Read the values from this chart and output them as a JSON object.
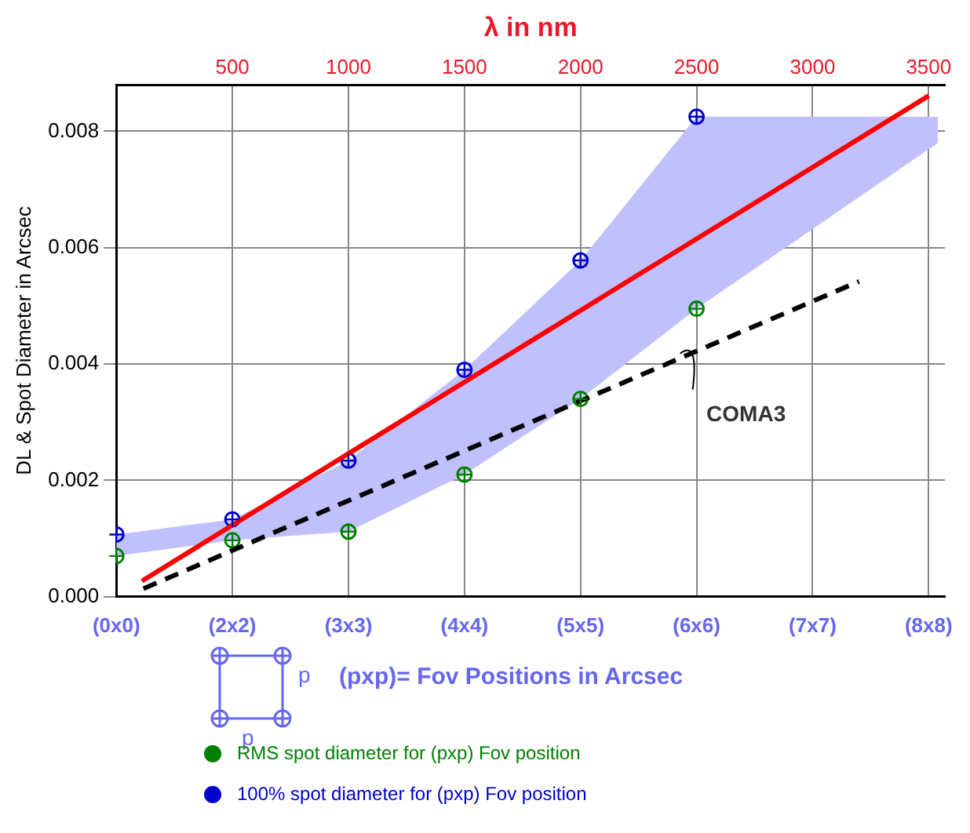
{
  "chart_data": {
    "type": "scatter",
    "ylabel": "DL & Spot Diameter in Arcsec",
    "x2label": "λ in nm",
    "categories": [
      "(0x0)",
      "(2x2)",
      "(3x3)",
      "(4x4)",
      "(5x5)",
      "(6x6)",
      "(7x7)",
      "(8x8)"
    ],
    "x2lim": [
      0,
      3570
    ],
    "x2ticks": [
      500,
      1000,
      1500,
      2000,
      2500,
      3000,
      3500
    ],
    "ylim": [
      0,
      0.0088
    ],
    "yticks": [
      {
        "value": 0,
        "label": "0.000"
      },
      {
        "value": 0.002,
        "label": "0.002"
      },
      {
        "value": 0.004,
        "label": "0.004"
      },
      {
        "value": 0.006,
        "label": "0.006"
      },
      {
        "value": 0.008,
        "label": "0.008"
      }
    ],
    "grid": true,
    "legend": "bottom",
    "series": [
      {
        "type": "area",
        "axis": "x2",
        "color": "#c0c0fd",
        "x": [
          0,
          500,
          1000,
          1500,
          2000,
          2500,
          3540
        ],
        "values": [
          null,
          null,
          null,
          null,
          null,
          null,
          null
        ],
        "lower": [
          0.0007,
          0.00097,
          0.00112,
          0.0021,
          0.0034,
          0.00495,
          0.0078
        ],
        "upper": [
          0.00107,
          0.00133,
          0.00234,
          0.0039,
          0.00578,
          0.00825,
          0.00825
        ]
      },
      {
        "type": "line",
        "axis": "x2",
        "color": "#ff0000",
        "marker": "none",
        "line_style": "solid",
        "x": [
          110,
          3500
        ],
        "values": [
          0.00027,
          0.00861
        ]
      },
      {
        "type": "line",
        "axis": "x2",
        "name": "COMA3",
        "color": "#000000",
        "marker": "none",
        "line_style": "dashed",
        "x": [
          117,
          3200
        ],
        "values": [
          0.00014,
          0.00542
        ]
      },
      {
        "name": "RMS spot diameter for (pxp) Fov position",
        "color": "#008000",
        "marker": "circle",
        "x": [
          "(0x0)",
          "(2x2)",
          "(3x3)",
          "(4x4)",
          "(5x5)",
          "(6x6)"
        ],
        "values": [
          0.0007,
          0.00097,
          0.00112,
          0.0021,
          0.0034,
          0.00495
        ]
      },
      {
        "name": "100% spot diameter for (pxp) Fov position",
        "color": "#0000cc",
        "marker": "circle",
        "x": [
          "(0x0)",
          "(2x2)",
          "(3x3)",
          "(4x4)",
          "(5x5)",
          "(6x6)"
        ],
        "values": [
          0.00107,
          0.00133,
          0.00234,
          0.0039,
          0.00578,
          0.00825
        ]
      }
    ],
    "annotations": [
      "(pxp)= Fov Positions in Arcsec",
      "p",
      "p"
    ]
  }
}
